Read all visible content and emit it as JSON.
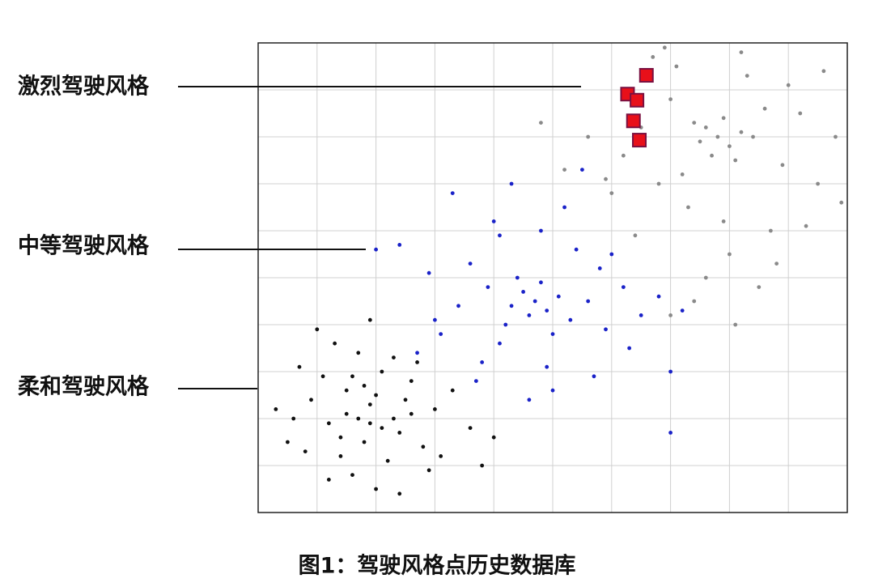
{
  "chart_data": {
    "type": "scatter",
    "caption": "图1：驾驶风格点历史数据库",
    "xlim": [
      0,
      10
    ],
    "ylim": [
      0,
      10
    ],
    "xticks": [
      0,
      1,
      2,
      3,
      4,
      5,
      6,
      7,
      8,
      9,
      10
    ],
    "yticks": [
      0,
      1,
      2,
      3,
      4,
      5,
      6,
      7,
      8,
      9,
      10
    ],
    "grid": true,
    "series": [
      {
        "name": "激烈驾驶风格",
        "color": "#8a8a8a",
        "marker": "circle",
        "x": [
          7.8,
          7.6,
          8.0,
          7.5,
          8.2,
          7.9,
          7.7,
          8.1,
          7.4,
          8.4,
          7.2,
          8.6,
          7.0,
          8.9,
          6.8,
          9.2,
          7.3,
          8.3,
          6.5,
          9.5,
          7.9,
          6.2,
          8.7,
          7.1,
          9.8,
          6.0,
          8.0,
          5.6,
          9.0,
          7.6,
          5.2,
          8.5,
          6.7,
          9.3,
          7.4,
          4.8,
          8.8,
          6.4,
          9.6,
          7.0,
          8.2,
          5.9,
          9.9,
          6.9,
          8.1
        ],
        "values": [
          8.0,
          8.2,
          7.8,
          7.9,
          8.1,
          8.4,
          7.6,
          7.5,
          8.3,
          8.0,
          7.2,
          8.6,
          8.8,
          7.4,
          7.0,
          8.5,
          6.5,
          9.3,
          8.2,
          7.0,
          6.2,
          7.6,
          6.0,
          9.5,
          8.0,
          6.8,
          5.5,
          8.0,
          9.1,
          5.0,
          7.3,
          4.8,
          9.7,
          6.1,
          4.5,
          8.3,
          5.3,
          5.9,
          9.4,
          4.2,
          9.8,
          7.1,
          6.6,
          9.9,
          4.0
        ]
      },
      {
        "name": "中等驾驶风格",
        "color": "#1a22c8",
        "marker": "circle",
        "x": [
          4.7,
          4.5,
          4.9,
          4.3,
          5.1,
          4.6,
          4.8,
          4.2,
          5.3,
          4.4,
          5.0,
          3.9,
          5.6,
          4.1,
          3.6,
          5.9,
          4.0,
          3.4,
          6.2,
          3.8,
          5.4,
          2.9,
          6.5,
          3.1,
          4.6,
          5.2,
          2.4,
          6.8,
          3.3,
          5.7,
          4.3,
          4.9,
          2.0,
          6.0,
          3.7,
          5.5,
          7.2,
          2.7,
          4.8,
          5.0,
          3.0,
          6.3,
          4.1,
          7.0,
          5.8,
          7.0
        ],
        "values": [
          4.5,
          4.7,
          4.3,
          4.4,
          4.6,
          4.2,
          4.9,
          4.0,
          4.1,
          5.0,
          3.8,
          4.8,
          4.5,
          3.6,
          5.3,
          3.9,
          6.2,
          4.4,
          4.8,
          3.2,
          5.6,
          5.1,
          4.2,
          3.8,
          2.4,
          6.5,
          5.7,
          4.6,
          6.8,
          2.9,
          7.0,
          3.1,
          5.6,
          5.5,
          2.8,
          7.3,
          4.3,
          3.4,
          6.0,
          2.6,
          4.1,
          3.5,
          5.9,
          3.0,
          5.2,
          1.7
        ]
      },
      {
        "name": "柔和驾驶风格",
        "color": "#111111",
        "marker": "circle",
        "x": [
          1.9,
          1.5,
          2.3,
          1.2,
          2.6,
          1.8,
          0.9,
          2.1,
          1.4,
          3.0,
          1.7,
          2.4,
          0.6,
          1.1,
          2.8,
          2.0,
          1.6,
          3.3,
          0.3,
          2.2,
          1.3,
          1.9,
          2.7,
          0.8,
          3.6,
          1.5,
          2.0,
          2.5,
          1.0,
          4.0,
          1.8,
          2.9,
          0.5,
          2.3,
          1.2,
          3.1,
          1.6,
          2.1,
          0.7,
          3.8,
          2.6,
          1.4,
          1.9,
          2.4,
          1.7
        ],
        "values": [
          2.3,
          2.6,
          2.0,
          1.9,
          2.8,
          1.5,
          2.4,
          3.0,
          1.2,
          2.2,
          3.4,
          1.7,
          2.0,
          2.9,
          1.4,
          2.5,
          0.8,
          2.6,
          2.2,
          1.1,
          3.6,
          1.9,
          3.2,
          1.3,
          1.8,
          2.1,
          0.5,
          2.4,
          3.9,
          1.6,
          2.7,
          0.9,
          1.5,
          3.3,
          0.7,
          1.2,
          2.9,
          1.8,
          3.1,
          1.0,
          2.1,
          1.6,
          4.1,
          0.4,
          2.0
        ]
      },
      {
        "color": "#e8101a",
        "marker": "square",
        "x": [
          6.59,
          6.27,
          6.43,
          6.37,
          6.47
        ],
        "values": [
          9.31,
          8.91,
          8.78,
          8.34,
          7.93
        ]
      }
    ]
  }
}
